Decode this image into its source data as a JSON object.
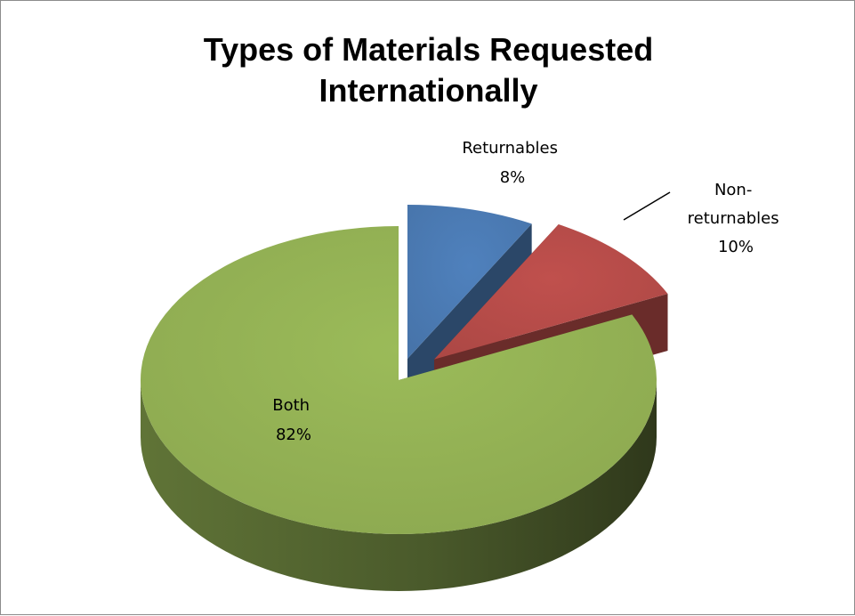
{
  "chart_data": {
    "type": "pie",
    "title_lines": [
      "Types of Materials Requested",
      "Internationally"
    ],
    "slices": [
      {
        "label_lines": [
          "Returnables",
          "8%"
        ],
        "value": 8,
        "color": "#4F81BD"
      },
      {
        "label_lines": [
          "Non-",
          "returnables",
          "10%"
        ],
        "value": 10,
        "color": "#C0504D"
      },
      {
        "label_lines": [
          "Both",
          "82%"
        ],
        "value": 82,
        "color": "#9BBB59"
      }
    ],
    "style": "3d-exploded",
    "legend": "none"
  }
}
